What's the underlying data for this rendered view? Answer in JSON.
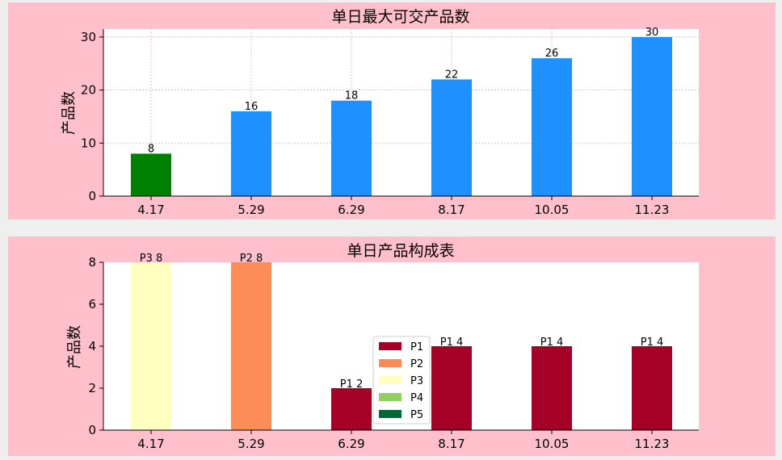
{
  "chart_data": [
    {
      "type": "bar",
      "title": "单日最大可交产品数",
      "ylabel": "产品数",
      "xlabel": "",
      "categories": [
        "4.17",
        "5.29",
        "6.29",
        "8.17",
        "10.05",
        "11.23"
      ],
      "values": [
        8,
        16,
        18,
        22,
        26,
        30
      ],
      "bar_colors": [
        "#008000",
        "#1e90ff",
        "#1e90ff",
        "#1e90ff",
        "#1e90ff",
        "#1e90ff"
      ],
      "data_labels": [
        "8",
        "16",
        "18",
        "22",
        "26",
        "30"
      ],
      "ylim": [
        0,
        31.5
      ],
      "yticks": [
        "0",
        "10",
        "20",
        "30"
      ],
      "grid": true,
      "background": "#ffc0cb"
    },
    {
      "type": "bar",
      "stacked": true,
      "title": "单日产品构成表",
      "ylabel": "产品数",
      "xlabel": "",
      "categories": [
        "4.17",
        "5.29",
        "6.29",
        "8.17",
        "10.05",
        "11.23"
      ],
      "series": [
        {
          "name": "P1",
          "color": "#a50026",
          "values": [
            0,
            0,
            2,
            4,
            4,
            4
          ]
        },
        {
          "name": "P2",
          "color": "#fc8d59",
          "values": [
            0,
            8,
            0,
            0,
            0,
            0
          ]
        },
        {
          "name": "P3",
          "color": "#ffffbf",
          "values": [
            8,
            0,
            0,
            0,
            0,
            0
          ]
        },
        {
          "name": "P4",
          "color": "#91cf60",
          "values": [
            0,
            0,
            0,
            0,
            0,
            0
          ]
        },
        {
          "name": "P5",
          "color": "#006837",
          "values": [
            0,
            0,
            0,
            0,
            0,
            0
          ]
        }
      ],
      "data_labels": [
        "P3 8",
        "P2 8",
        "P1 2",
        "P1 4",
        "P1 4",
        "P1 4"
      ],
      "ylim": [
        0,
        8
      ],
      "yticks": [
        "0",
        "2",
        "4",
        "6",
        "8"
      ],
      "grid": false,
      "legend": "center",
      "background": "#ffc0cb"
    }
  ]
}
